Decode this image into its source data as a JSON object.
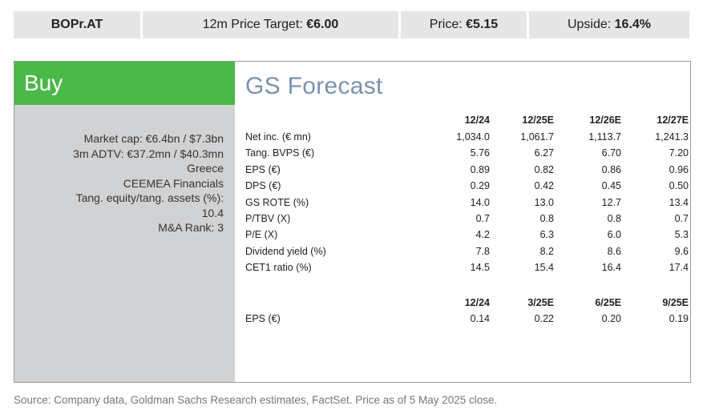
{
  "top_bar": [
    {
      "label": "BOPr.AT"
    },
    {
      "label": "12m Price Target:",
      "value": "€6.00"
    },
    {
      "label": "Price:",
      "value": "€5.15"
    },
    {
      "label": "Upside:",
      "value": "16.4%"
    }
  ],
  "rating": "Buy",
  "info": [
    "Market cap: €6.4bn / $7.3bn",
    "3m ADTV: €37.2mn / $40.3mn",
    "Greece",
    "CEEMEA Financials",
    "Tang. equity/tang. assets (%):",
    "10.4",
    "M&A Rank: 3"
  ],
  "forecast": {
    "title": "GS Forecast",
    "annual": {
      "columns": [
        "12/24",
        "12/25E",
        "12/26E",
        "12/27E"
      ],
      "rows": [
        [
          "Net inc. (€ mn)",
          "1,034.0",
          "1,061.7",
          "1,113.7",
          "1,241.3"
        ],
        [
          "Tang. BVPS (€)",
          "5.76",
          "6.27",
          "6.70",
          "7.20"
        ],
        [
          "EPS (€)",
          "0.89",
          "0.82",
          "0.86",
          "0.96"
        ],
        [
          "DPS (€)",
          "0.29",
          "0.42",
          "0.45",
          "0.50"
        ],
        [
          "GS ROTE (%)",
          "14.0",
          "13.0",
          "12.7",
          "13.4"
        ],
        [
          "P/TBV (X)",
          "0.7",
          "0.8",
          "0.8",
          "0.7"
        ],
        [
          "P/E (X)",
          "4.2",
          "6.3",
          "6.0",
          "5.3"
        ],
        [
          "Dividend yield (%)",
          "7.8",
          "8.2",
          "8.6",
          "9.6"
        ],
        [
          "CET1 ratio (%)",
          "14.5",
          "15.4",
          "16.4",
          "17.4"
        ]
      ]
    },
    "quarterly": {
      "columns": [
        "12/24",
        "3/25E",
        "6/25E",
        "9/25E"
      ],
      "rows": [
        [
          "EPS (€)",
          "0.14",
          "0.22",
          "0.20",
          "0.19"
        ]
      ]
    }
  },
  "source": "Source: Company data, Goldman Sachs Research estimates, FactSet. Price as of 5 May 2025 close."
}
